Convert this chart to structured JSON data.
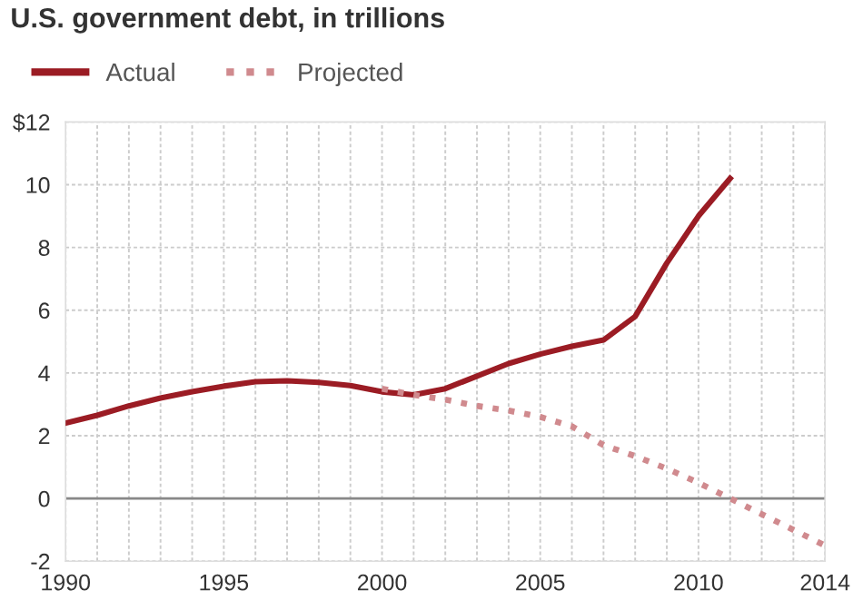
{
  "chart_data": {
    "type": "line",
    "title": "U.S. government debt, in trillions",
    "series": [
      {
        "name": "Actual",
        "color": "#9b1c24",
        "line_style": "solid",
        "x": [
          1990,
          1991,
          1992,
          1993,
          1994,
          1995,
          1996,
          1997,
          1998,
          1999,
          2000,
          2001,
          2002,
          2003,
          2004,
          2005,
          2006,
          2007,
          2008,
          2009,
          2010,
          2011
        ],
        "values": [
          2.4,
          2.65,
          2.95,
          3.2,
          3.4,
          3.58,
          3.72,
          3.75,
          3.7,
          3.6,
          3.4,
          3.3,
          3.5,
          3.9,
          4.3,
          4.6,
          4.85,
          5.05,
          5.8,
          7.5,
          9.0,
          10.2
        ]
      },
      {
        "name": "Projected",
        "color": "#d08a8e",
        "line_style": "dotted",
        "x": [
          2000,
          2001,
          2002,
          2003,
          2004,
          2005,
          2006,
          2007,
          2008,
          2009,
          2010,
          2011,
          2012,
          2013,
          2014
        ],
        "values": [
          3.5,
          3.3,
          3.15,
          2.95,
          2.8,
          2.6,
          2.3,
          1.7,
          1.35,
          0.95,
          0.5,
          0.0,
          -0.5,
          -1.0,
          -1.5
        ]
      }
    ],
    "xlim": [
      1990,
      2014
    ],
    "xticks": [
      1990,
      {
        "value": 1991,
        "label": null
      },
      {
        "value": 1992,
        "label": null
      },
      {
        "value": 1993,
        "label": null
      },
      {
        "value": 1994,
        "label": null
      },
      1995,
      {
        "value": 1996,
        "label": null
      },
      {
        "value": 1997,
        "label": null
      },
      {
        "value": 1998,
        "label": null
      },
      {
        "value": 1999,
        "label": null
      },
      2000,
      {
        "value": 2001,
        "label": null
      },
      {
        "value": 2002,
        "label": null
      },
      {
        "value": 2003,
        "label": null
      },
      {
        "value": 2004,
        "label": null
      },
      2005,
      {
        "value": 2006,
        "label": null
      },
      {
        "value": 2007,
        "label": null
      },
      {
        "value": 2008,
        "label": null
      },
      {
        "value": 2009,
        "label": null
      },
      2010,
      {
        "value": 2011,
        "label": null
      },
      {
        "value": 2012,
        "label": null
      },
      {
        "value": 2013,
        "label": null
      },
      2014
    ],
    "ylim": [
      -2,
      12
    ],
    "yticks": [
      -2,
      0,
      2,
      4,
      6,
      8,
      {
        "value": 10,
        "label": "10"
      },
      {
        "value": 12,
        "label": "$12"
      }
    ],
    "ref_lines": [
      {
        "axis": "y",
        "value": 0,
        "label": null,
        "color": "#888888"
      }
    ],
    "grid": true,
    "legend": "top left",
    "marker": "none"
  }
}
